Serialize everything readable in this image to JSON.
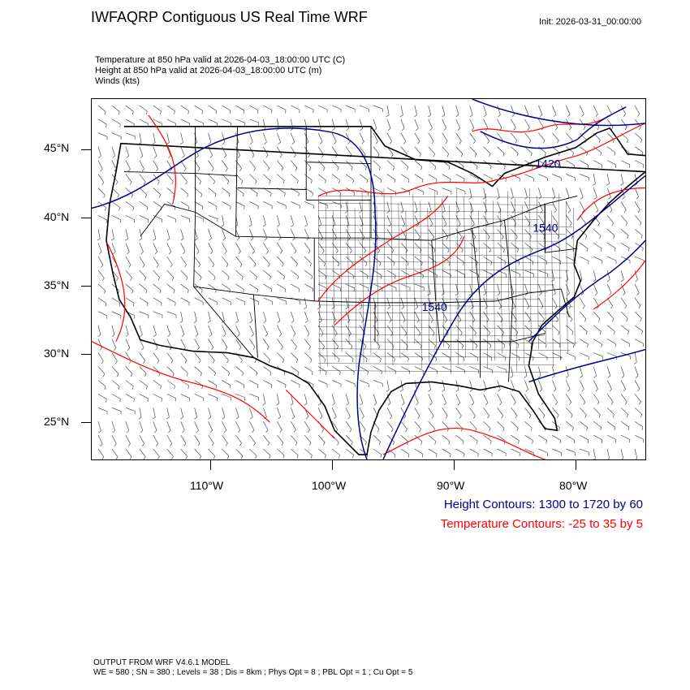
{
  "header": {
    "title": "IWFAQRP Contiguous US Real Time WRF",
    "init": "Init: 2026-03-31_00:00:00"
  },
  "subtitles": {
    "line1": "Temperature at 850 hPa valid at 2026-04-03_18:00:00 UTC   (C)",
    "line2": "Height at 850 hPa valid at 2026-04-03_18:00:00 UTC   (m)",
    "line3": "Winds   (kts)"
  },
  "map": {
    "latitude_labels": [
      "45°N",
      "40°N",
      "35°N",
      "30°N",
      "25°N"
    ],
    "longitude_labels": [
      "110°W",
      "100°W",
      "90°W",
      "80°W"
    ],
    "height_contour_labels": [
      "1420",
      "1540",
      "1540"
    ],
    "colors": {
      "height": "#00008b",
      "temperature": "#ff0000",
      "boundaries": "#000000",
      "wind_barbs": "#333333"
    }
  },
  "legend": {
    "height": "Height Contours: 1300 to 1720 by 60",
    "temperature": "Temperature Contours: -25 to 35 by 5"
  },
  "footer": {
    "line1": "OUTPUT FROM WRF V4.6.1 MODEL",
    "line2": "WE = 580 ; SN = 380 ; Levels = 38 ; Dis = 8km ; Phys Opt = 8 ; PBL Opt = 1 ; Cu Opt = 5"
  }
}
